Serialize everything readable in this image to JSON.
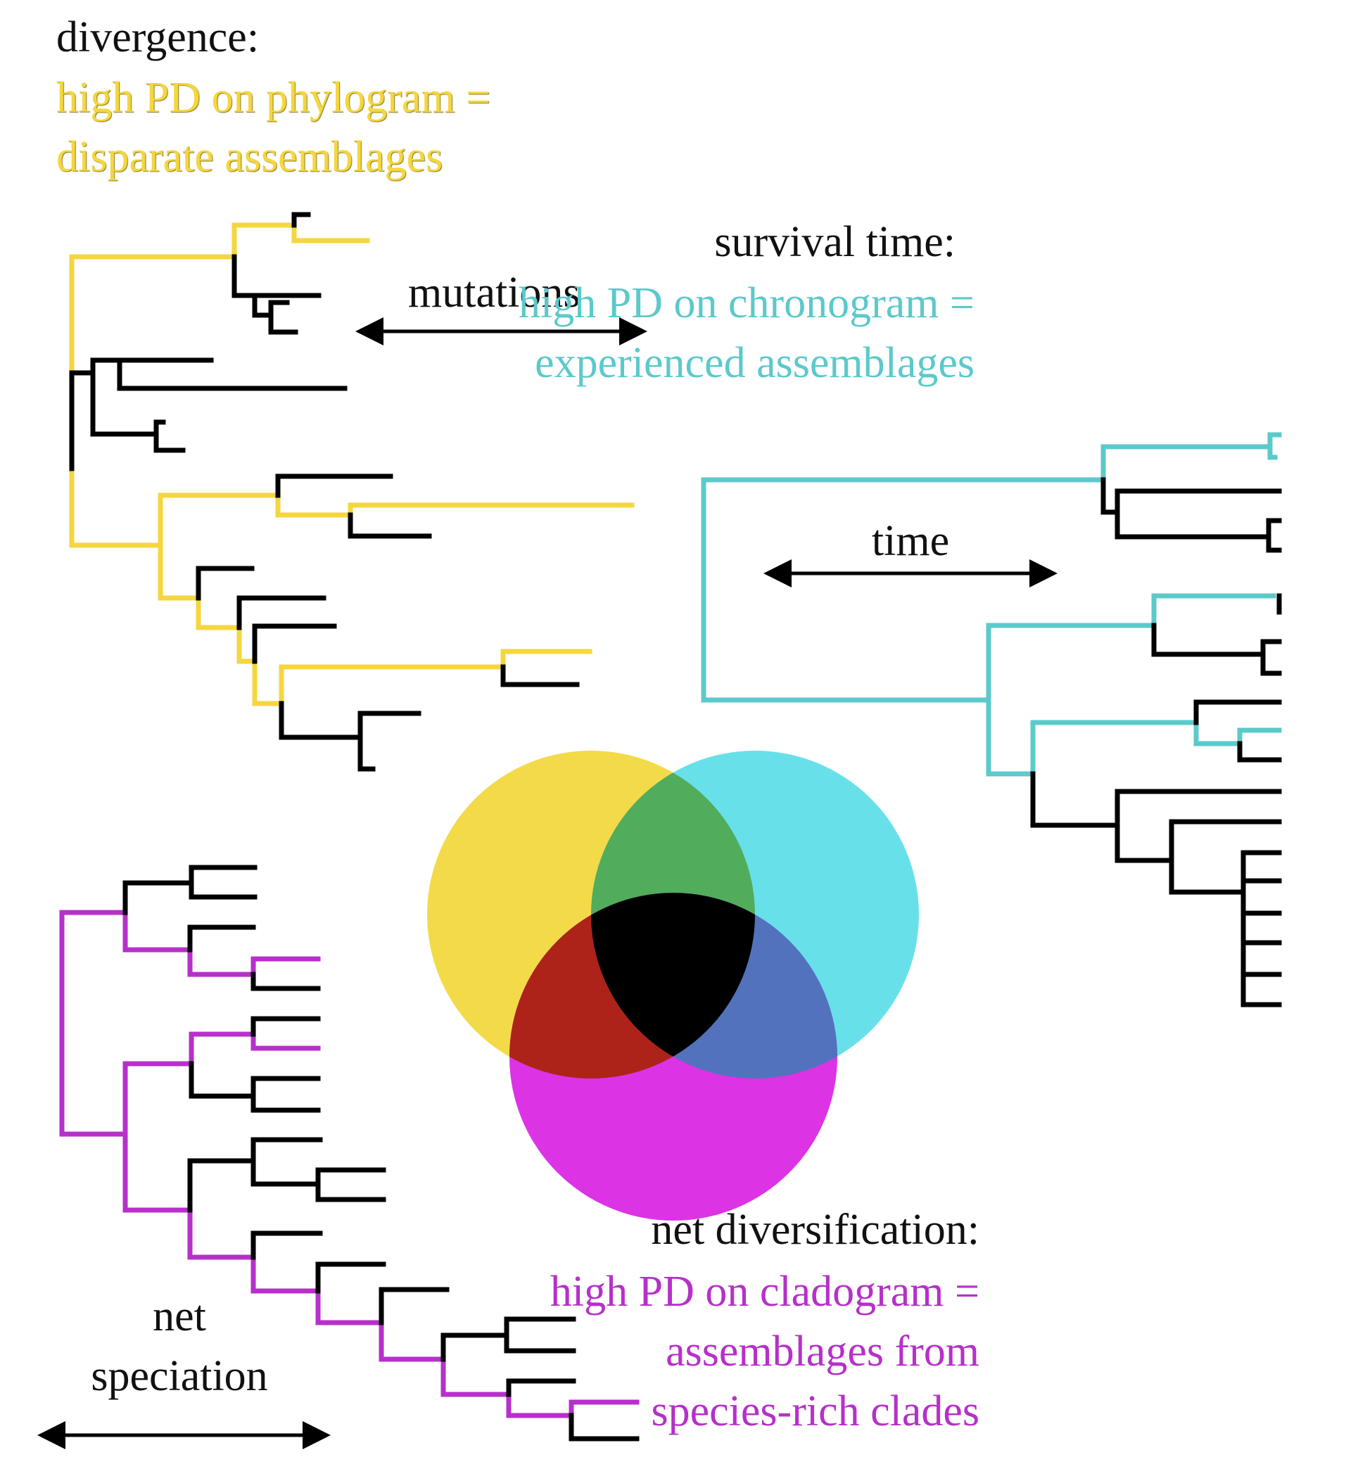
{
  "colors": {
    "yellow": "#f5d63d",
    "cyan": "#5cc9cb",
    "magenta": "#b630c9",
    "black": "#000000",
    "venn_yellow": "#f3da48",
    "venn_cyan": "#68e0ea",
    "venn_magenta": "#dc33e5",
    "venn_yellow_cyan": "#51ac5c",
    "venn_yellow_magenta": "#ad2319",
    "venn_cyan_magenta": "#5272bd",
    "venn_center": "#000000"
  },
  "divergence": {
    "title": "divergence:",
    "desc_line1": "high PD on phylogram =",
    "desc_line2": "disparate assemblages",
    "axis_label": "mutations"
  },
  "survival": {
    "title": "survival time:",
    "desc_line1": "high PD on chronogram =",
    "desc_line2": "experienced assemblages",
    "axis_label": "time"
  },
  "diversification": {
    "title": "net diversification:",
    "desc_line1": "high PD on cladogram =",
    "desc_line2": "assemblages from",
    "desc_line3": "species-rich clades",
    "axis_label_line1": "net",
    "axis_label_line2": "speciation"
  }
}
